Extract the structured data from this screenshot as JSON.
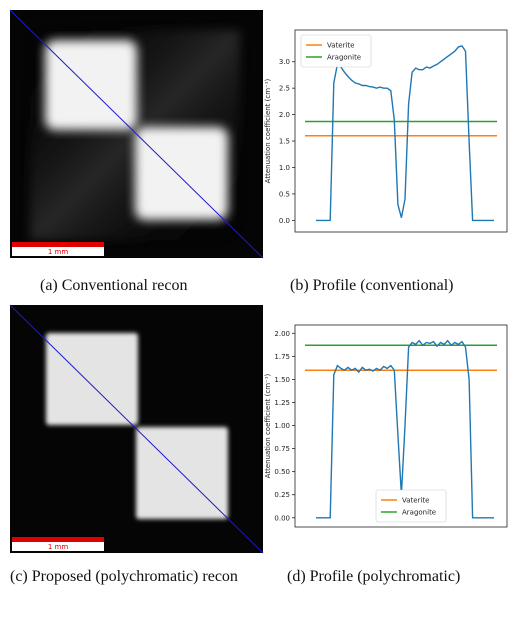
{
  "images": [
    {
      "scale_label": "1 mm"
    },
    {
      "scale_label": "1 mm"
    }
  ],
  "captions": [
    "(a)  Conventional recon",
    "(b)  Profile (conventional)",
    "(c)  Proposed (polychromatic) recon",
    "(d)  Profile (polychromatic)"
  ],
  "chart_data": [
    {
      "type": "line",
      "ylabel": "Attenuation coefficient (cm⁻¹)",
      "ylim": [
        -0.22,
        3.6
      ],
      "yticks": [
        {
          "value": 0,
          "label": "0.0"
        },
        0.5,
        {
          "value": 1,
          "label": "1.0"
        },
        1.5,
        {
          "value": 2,
          "label": "2.0"
        },
        2.5,
        {
          "value": 3,
          "label": "3.0"
        }
      ],
      "legend": "upper left",
      "series": [
        {
          "color": "#1f77b4",
          "values": [
            0,
            0,
            0,
            0,
            0,
            2.6,
            2.95,
            2.9,
            2.8,
            2.72,
            2.65,
            2.6,
            2.58,
            2.55,
            2.55,
            2.53,
            2.52,
            2.5,
            2.52,
            2.5,
            2.5,
            2.45,
            1.9,
            0.3,
            0.05,
            0.4,
            2.2,
            2.8,
            2.88,
            2.85,
            2.85,
            2.9,
            2.88,
            2.92,
            2.95,
            3.0,
            3.05,
            3.1,
            3.15,
            3.2,
            3.28,
            3.3,
            3.2,
            1.5,
            0,
            0,
            0,
            0,
            0,
            0,
            0
          ]
        }
      ],
      "hlines": [
        {
          "name": "Vaterite",
          "color": "#ff7f0e",
          "value": 1.6
        },
        {
          "name": "Aragonite",
          "color": "#2ca02c",
          "value": 1.87
        }
      ]
    },
    {
      "type": "line",
      "ylabel": "Attenuation coefficient (cm⁻¹)",
      "ylim": [
        -0.1,
        2.09
      ],
      "yticks": [
        {
          "value": 0,
          "label": "0.00"
        },
        0.25,
        {
          "value": 0.5,
          "label": "0.50"
        },
        0.75,
        {
          "value": 1,
          "label": "1.00"
        },
        1.25,
        {
          "value": 1.5,
          "label": "1.50"
        },
        1.75,
        {
          "value": 2,
          "label": "2.00"
        }
      ],
      "legend": "lower center",
      "series": [
        {
          "color": "#1f77b4",
          "values": [
            0,
            0,
            0,
            0,
            0,
            1.55,
            1.65,
            1.62,
            1.6,
            1.63,
            1.6,
            1.62,
            1.58,
            1.63,
            1.6,
            1.61,
            1.59,
            1.62,
            1.6,
            1.64,
            1.62,
            1.65,
            1.6,
            0.9,
            0.25,
            1.0,
            1.85,
            1.9,
            1.88,
            1.92,
            1.87,
            1.9,
            1.89,
            1.91,
            1.86,
            1.9,
            1.88,
            1.92,
            1.87,
            1.9,
            1.88,
            1.91,
            1.85,
            1.5,
            0,
            0,
            0,
            0,
            0,
            0,
            0
          ]
        }
      ],
      "hlines": [
        {
          "name": "Vaterite",
          "color": "#ff7f0e",
          "value": 1.6
        },
        {
          "name": "Aragonite",
          "color": "#2ca02c",
          "value": 1.87
        }
      ]
    }
  ]
}
